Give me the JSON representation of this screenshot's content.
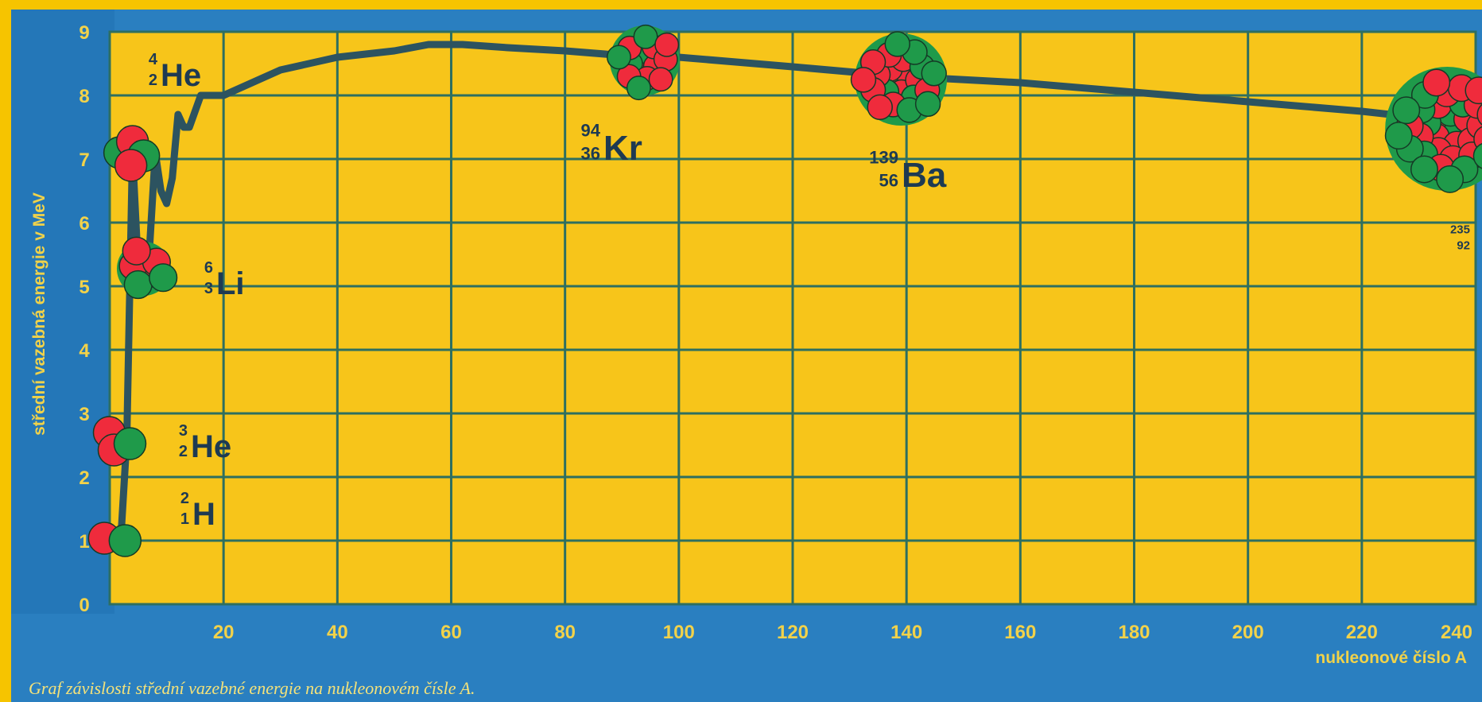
{
  "chart_data": {
    "type": "line",
    "caption": "Graf závislosti střední vazebné energie na nukleonovém čísle A.",
    "xlabel": "nukleonové číslo A",
    "ylabel": "střední vazebná energie v MeV",
    "xlim": [
      0,
      240
    ],
    "ylim": [
      0,
      9
    ],
    "x_ticks": [
      "20",
      "40",
      "60",
      "80",
      "100",
      "120",
      "140",
      "160",
      "180",
      "200",
      "220",
      "240"
    ],
    "y_ticks": [
      "0",
      "1",
      "2",
      "3",
      "4",
      "5",
      "6",
      "7",
      "8",
      "9"
    ],
    "grid": true,
    "series": [
      {
        "x": [
          2,
          3,
          4,
          5,
          6,
          7,
          8,
          9,
          10,
          11,
          12,
          13,
          14,
          16,
          20,
          25,
          30,
          40,
          50,
          56,
          62,
          70,
          80,
          94,
          100,
          120,
          139,
          160,
          180,
          200,
          220,
          235
        ],
        "y": [
          1.1,
          2.6,
          7.1,
          5.3,
          5.3,
          5.6,
          7.1,
          6.5,
          6.3,
          6.7,
          7.7,
          7.5,
          7.5,
          8.0,
          8.0,
          8.2,
          8.4,
          8.6,
          8.7,
          8.8,
          8.8,
          8.75,
          8.7,
          8.6,
          8.6,
          8.45,
          8.3,
          8.2,
          8.05,
          7.9,
          7.75,
          7.6
        ]
      }
    ],
    "nuclides": [
      {
        "id": "h2",
        "A": 2,
        "Z": "1",
        "mass": "2",
        "symbol": "H",
        "E": 1.1
      },
      {
        "id": "he3",
        "A": 3,
        "Z": "2",
        "mass": "3",
        "symbol": "He",
        "E": 2.6
      },
      {
        "id": "he4",
        "A": 4,
        "Z": "2",
        "mass": "4",
        "symbol": "He",
        "E": 7.1
      },
      {
        "id": "li6",
        "A": 6,
        "Z": "3",
        "mass": "6",
        "symbol": "Li",
        "E": 5.3
      },
      {
        "id": "kr94",
        "A": 94,
        "Z": "36",
        "mass": "94",
        "symbol": "Kr",
        "E": 8.6
      },
      {
        "id": "ba139",
        "A": 139,
        "Z": "56",
        "mass": "139",
        "symbol": "Ba",
        "E": 8.3
      },
      {
        "id": "u235",
        "A": 235,
        "Z": "92",
        "mass": "235",
        "symbol": "",
        "E": 7.6
      }
    ]
  },
  "colors": {
    "background": "#f6c400",
    "border_blue": "#2a7fc0",
    "plot_fill": "#f7c51a",
    "grid": "#2e6f60",
    "curve": "#2c5360",
    "proton": "#ef2b3c",
    "neutron": "#1f9a4a"
  }
}
